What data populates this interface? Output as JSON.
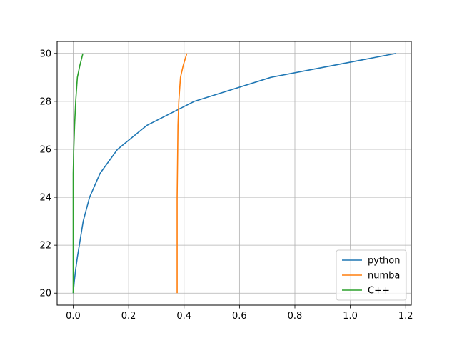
{
  "chart_data": {
    "type": "line",
    "title": "",
    "xlabel": "",
    "ylabel": "",
    "xlim": [
      -0.058,
      1.22
    ],
    "ylim": [
      19.5,
      30.5
    ],
    "grid": true,
    "legend_position": "bottom-right",
    "x_ticks": [
      0.0,
      0.2,
      0.4,
      0.6,
      0.8,
      1.0,
      1.2
    ],
    "x_tick_labels": [
      "0.0",
      "0.2",
      "0.4",
      "0.6",
      "0.8",
      "1.0",
      "1.2"
    ],
    "y_ticks": [
      20,
      22,
      24,
      26,
      28,
      30
    ],
    "y_tick_labels": [
      "20",
      "22",
      "24",
      "26",
      "28",
      "30"
    ],
    "series": [
      {
        "name": "python",
        "color": "#1f77b4",
        "x": [
          0.0,
          0.004,
          0.009,
          0.015,
          0.022,
          0.036,
          0.059,
          0.097,
          0.16,
          0.266,
          0.437,
          0.713,
          1.165
        ],
        "y": [
          20,
          20.5,
          21,
          21.5,
          22,
          23,
          24,
          25,
          26,
          27,
          28,
          29,
          30
        ]
      },
      {
        "name": "numba",
        "color": "#ff7f0e",
        "x": [
          0.375,
          0.375,
          0.375,
          0.376,
          0.377,
          0.378,
          0.381,
          0.387,
          0.397,
          0.41
        ],
        "y": [
          20,
          22,
          24,
          25,
          26,
          27,
          28,
          29,
          29.5,
          30
        ]
      },
      {
        "name": "C++",
        "color": "#2ca02c",
        "x": [
          0.0,
          0.0,
          0.0,
          0.0,
          0.001,
          0.002,
          0.005,
          0.009,
          0.015,
          0.024,
          0.035
        ],
        "y": [
          20,
          22,
          24,
          25,
          25.5,
          26,
          27,
          28,
          29,
          29.5,
          30
        ]
      }
    ]
  }
}
